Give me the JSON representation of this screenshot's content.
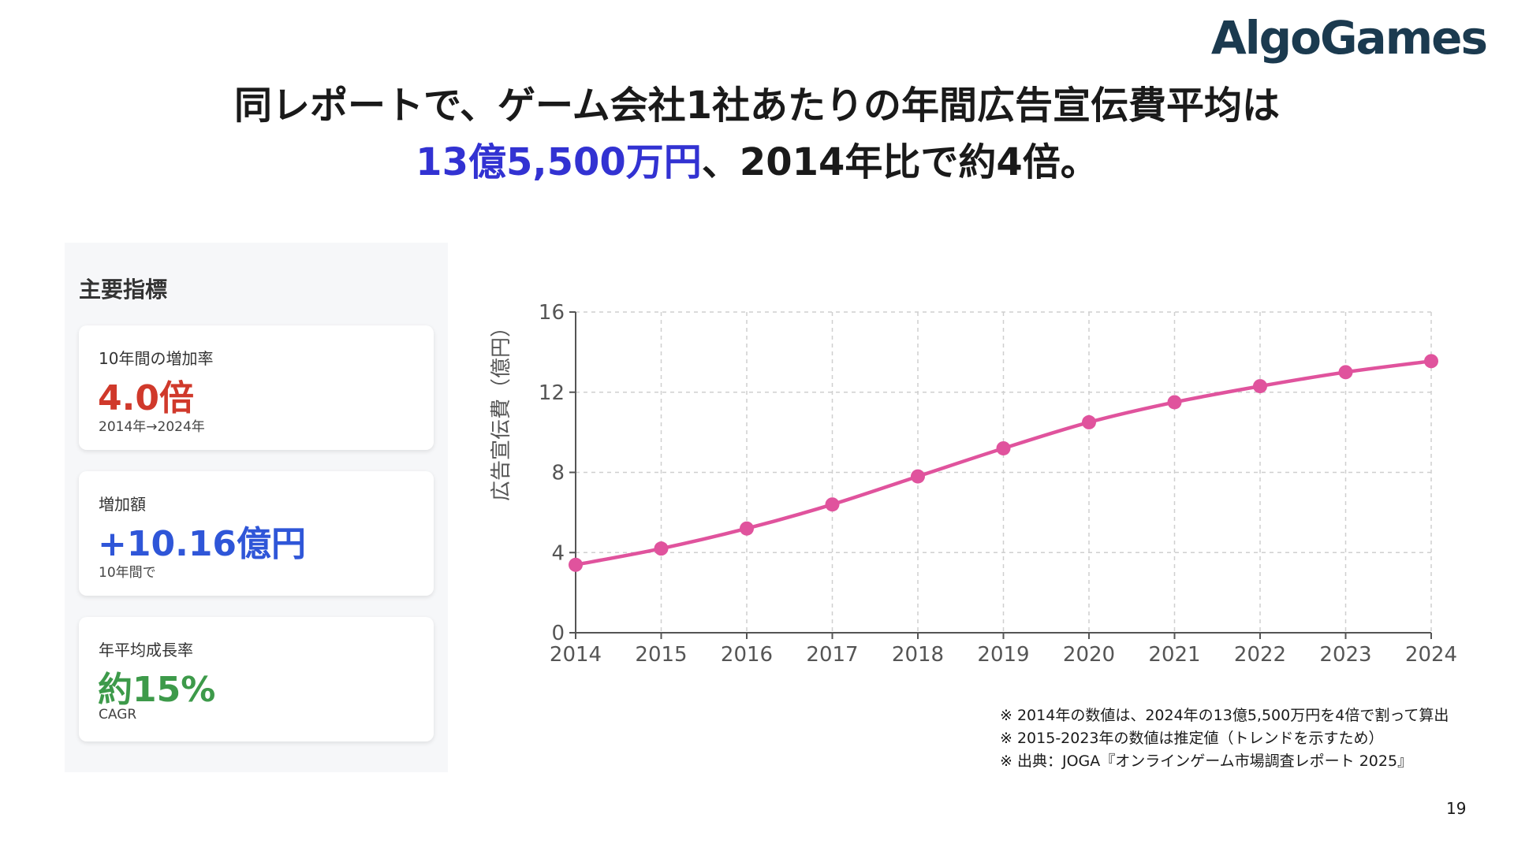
{
  "brand": {
    "logo_text": "AlgoGames"
  },
  "title": {
    "line1": "同レポートで、ゲーム会社1社あたりの年間広告宣伝費平均は",
    "line2_highlight": "13億5,500万円",
    "line2_rest": "、2014年比で約4倍。",
    "highlight_color": "#3232d2"
  },
  "panel": {
    "title": "主要指標",
    "cards": [
      {
        "label": "10年間の増加率",
        "value": "4.0倍",
        "sub": "2014年→2024年",
        "color": "#d0392b"
      },
      {
        "label": "増加額",
        "value": "+10.16億円",
        "sub": "10年間で",
        "color": "#2f56d8"
      },
      {
        "label": "年平均成長率",
        "value": "約15%",
        "sub": "CAGR",
        "color": "#3d9a4a"
      }
    ]
  },
  "chart_data": {
    "type": "line",
    "x": [
      2014,
      2015,
      2016,
      2017,
      2018,
      2019,
      2020,
      2021,
      2022,
      2023,
      2024
    ],
    "series": [
      {
        "values": [
          3.39,
          4.2,
          5.2,
          6.4,
          7.8,
          9.2,
          10.5,
          11.5,
          12.3,
          13.0,
          13.55
        ],
        "color": "#e0539d"
      }
    ],
    "xlabel": "",
    "ylabel": "広告宣伝費（億円）",
    "ylim": [
      0,
      16
    ],
    "yticks": [
      0,
      4,
      8,
      12,
      16
    ],
    "grid": true
  },
  "notes": [
    "※ 2014年の数値は、2024年の13億5,500万円を4倍で割って算出",
    "※ 2015-2023年の数値は推定値（トレンドを示すため）",
    "※ 出典：JOGA『オンラインゲーム市場調査レポート 2025』"
  ],
  "page_number": "19"
}
